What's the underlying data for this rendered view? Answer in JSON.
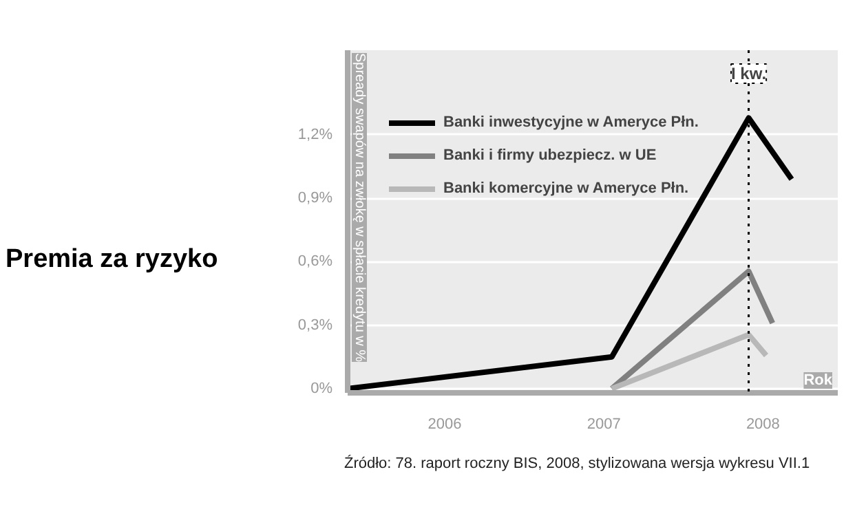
{
  "chart_data": {
    "type": "line",
    "title": "Premia za ryzyko",
    "ylabel": "Spready swapów na zwłokę w spłacie kredytu w %",
    "xlabel": "Rok",
    "series": [
      {
        "name": "Banki inwestycyjne w Ameryce Płn.",
        "color": "#000000",
        "x": [
          2005.39,
          2007.05,
          2007.91,
          2008.18
        ],
        "values": [
          0,
          0.15,
          1.28,
          0.99
        ]
      },
      {
        "name": "Banki i firmy ubezpiecz. w UE",
        "color": "#808080",
        "x": [
          2007.05,
          2007.91,
          2008.06
        ],
        "values": [
          0,
          0.555,
          0.31
        ]
      },
      {
        "name": "Banki komercyjne w Ameryce Płn.",
        "color": "#b8b8b8",
        "x": [
          2007.05,
          2007.91,
          2008.02
        ],
        "values": [
          0,
          0.255,
          0.157
        ]
      }
    ],
    "xlim": [
      2005.39,
      2008.47
    ],
    "xticks": [
      2006,
      2007,
      2008
    ],
    "ylim": [
      -0.02,
      1.6
    ],
    "yticks": [
      {
        "value": 0,
        "label": "0%"
      },
      {
        "value": 0.3,
        "label": "0,3%"
      },
      {
        "value": 0.6,
        "label": "0,6%"
      },
      {
        "value": 0.9,
        "label": "0,9%"
      },
      {
        "value": 1.2,
        "label": "1,2%"
      }
    ],
    "ref_lines": [
      {
        "axis": "x",
        "value": 2007.91,
        "label": "I kw.",
        "color": "#000000",
        "line_style": "dotted"
      }
    ],
    "annotations": [
      "Źródło: 78. raport roczny BIS, 2008, stylizowana wersja wykresu VII.1"
    ],
    "grid": "y",
    "legend": "top left",
    "line_style": "solid",
    "marker": "none"
  }
}
